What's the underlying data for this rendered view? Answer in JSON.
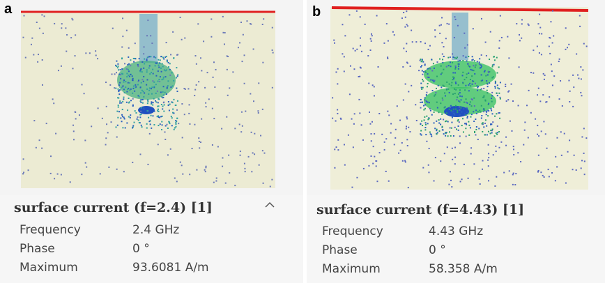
{
  "panels": [
    {
      "label": "a",
      "title": "surface current (f=2.4) [1]",
      "rows": [
        [
          "Frequency",
          "2.4 GHz"
        ],
        [
          "Phase",
          "0 °"
        ],
        [
          "Maximum",
          "93.6081 A/m"
        ]
      ]
    },
    {
      "label": "b",
      "title": "surface current (f=4.43) [1]",
      "rows": [
        [
          "Frequency",
          "4.43 GHz"
        ],
        [
          "Phase",
          "0 °"
        ],
        [
          "Maximum",
          "58.358 A/m"
        ]
      ]
    }
  ]
}
